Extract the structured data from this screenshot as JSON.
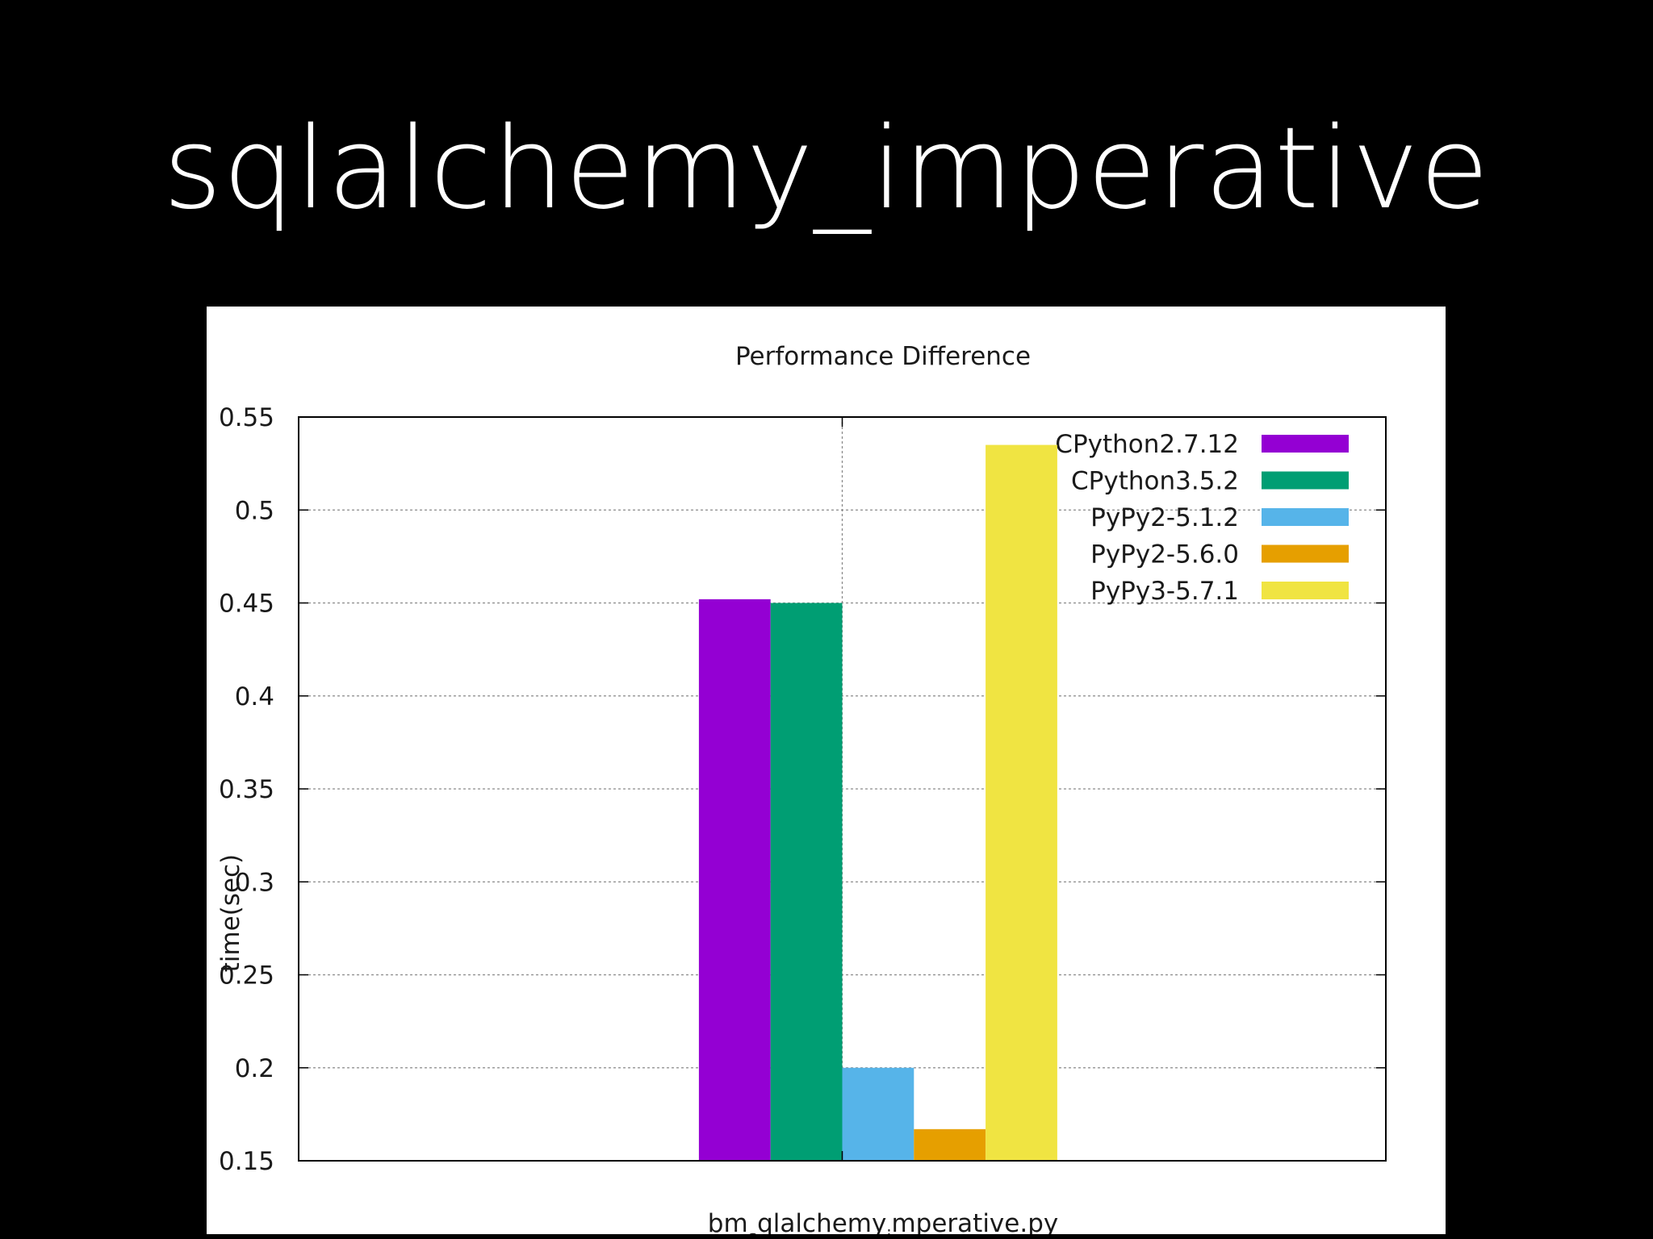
{
  "slide": {
    "title": "sqlalchemy_imperative"
  },
  "chart_data": {
    "type": "bar",
    "title": "Performance Difference",
    "xlabel": "bm_sqlalchemy_imperative.py",
    "xlabel_parts": [
      "bm",
      "s",
      "qlalchemy",
      "i",
      "mperative.py"
    ],
    "ylabel": "time(sec)",
    "ylim": [
      0.15,
      0.55
    ],
    "yticks": [
      "0.15",
      "0.2",
      "0.25",
      "0.3",
      "0.35",
      "0.4",
      "0.45",
      "0.5",
      "0.55"
    ],
    "grid": true,
    "legend_position": "top-right",
    "categories": [
      "bm_sqlalchemy_imperative.py"
    ],
    "series": [
      {
        "name": "CPython2.7.12",
        "color": "#9400d3",
        "values": [
          0.452
        ]
      },
      {
        "name": "CPython3.5.2",
        "color": "#009e73",
        "values": [
          0.45
        ]
      },
      {
        "name": "PyPy2-5.1.2",
        "color": "#56b4e9",
        "values": [
          0.2
        ]
      },
      {
        "name": "PyPy2-5.6.0",
        "color": "#e69f00",
        "values": [
          0.167
        ]
      },
      {
        "name": "PyPy3-5.7.1",
        "color": "#f0e442",
        "values": [
          0.535
        ]
      }
    ]
  }
}
